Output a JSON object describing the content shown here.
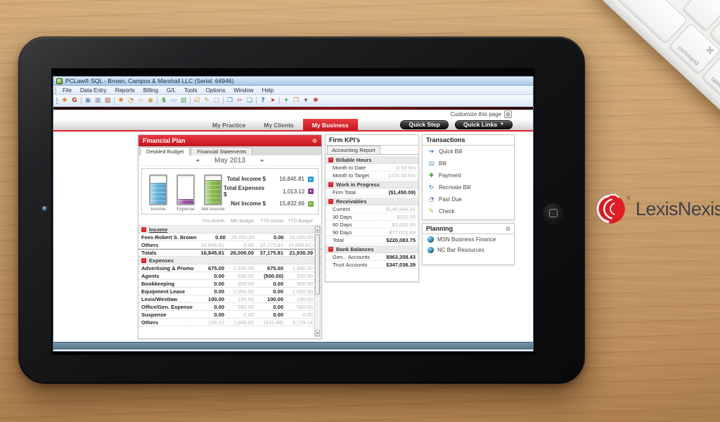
{
  "brand": {
    "logo_text": "LexisNexis",
    "registered_mark": "®"
  },
  "keyboard": {
    "command_glyph": "⌘",
    "command_label": "command",
    "option_glyph": "⌥",
    "option_label": "option",
    "arrows": [
      "◀",
      "▲",
      "▼",
      "▶"
    ]
  },
  "app": {
    "title": "PCLaw® SQL - Brown, Campos & Marshall LLC (Serial: 64946)",
    "menus": [
      "File",
      "Data Entry",
      "Reports",
      "Billing",
      "G/L",
      "Tools",
      "Options",
      "Window",
      "Help"
    ],
    "toolbar": [
      {
        "name": "practice-flower",
        "glyph": "✺",
        "color": "#e2862c"
      },
      {
        "name": "exit",
        "glyph": "G",
        "color": "#c03a2b"
      },
      {
        "name": "briefcase",
        "glyph": "▣",
        "color": "#6e8db3",
        "sep": true
      },
      {
        "name": "calendar",
        "glyph": "▦",
        "color": "#8a9ab0"
      },
      {
        "name": "note",
        "glyph": "▧",
        "color": "#b0513f"
      },
      {
        "name": "appointment",
        "glyph": "✺",
        "color": "#d8882f",
        "sep": true
      },
      {
        "name": "clock",
        "glyph": "◔",
        "color": "#cf8b30"
      },
      {
        "name": "new-page",
        "glyph": "▱",
        "color": "#c2a95e"
      },
      {
        "name": "lock",
        "glyph": "◉",
        "color": "#c9a23c"
      },
      {
        "name": "money",
        "glyph": "$",
        "color": "#3d9e3d",
        "sep": true
      },
      {
        "name": "monitor",
        "glyph": "▭",
        "color": "#5f9ecf"
      },
      {
        "name": "picture",
        "glyph": "▨",
        "color": "#63a14e"
      },
      {
        "name": "orange-task",
        "glyph": "☑",
        "color": "#e0882e",
        "sep": true
      },
      {
        "name": "edit-page",
        "glyph": "✎",
        "color": "#b8a34a"
      },
      {
        "name": "page",
        "glyph": "▢",
        "color": "#a89a6a"
      },
      {
        "name": "copy",
        "glyph": "❐",
        "color": "#5f86b5",
        "sep": true
      },
      {
        "name": "cut",
        "glyph": "✂",
        "color": "#c04545"
      },
      {
        "name": "paste",
        "glyph": "❏",
        "color": "#5f86b5"
      },
      {
        "name": "help",
        "glyph": "?",
        "color": "#2f6fbf",
        "sep": true
      },
      {
        "name": "pointer",
        "glyph": "➤",
        "color": "#c03a3a"
      },
      {
        "name": "add",
        "glyph": "✦",
        "color": "#3fae68",
        "sep": true
      },
      {
        "name": "windows",
        "glyph": "❐",
        "color": "#d8952f"
      },
      {
        "name": "dropdown",
        "glyph": "▾",
        "color": "#555555"
      },
      {
        "name": "settings",
        "glyph": "✱",
        "color": "#bf4040"
      }
    ],
    "customize_label": "Customize this page",
    "gear_glyph": "⚙",
    "caret_glyph": "▼",
    "nav_tabs": [
      {
        "label": "My Practice",
        "active": false
      },
      {
        "label": "My Clients",
        "active": false
      },
      {
        "label": "My Business",
        "active": true
      }
    ],
    "quick_step": "Quick Step",
    "quick_links": "Quick Links",
    "scroll_up_glyph": "▲",
    "scroll_down_glyph": "▼",
    "accent_red": "#da2128"
  },
  "financial_plan": {
    "title": "Financial Plan",
    "tabs": [
      {
        "label": "Detailed Budget",
        "active": true
      },
      {
        "label": "Financial Statements",
        "active": false
      }
    ],
    "prev_glyph": "◄",
    "next_glyph": "►",
    "month": "May 2013",
    "badge_glyph": "▸",
    "totals": [
      {
        "label": "Total Income $",
        "value": "16,845.81",
        "color": "#2e9bd6"
      },
      {
        "label": "Total Expenses $",
        "value": "1,013.12",
        "color": "#8e3f93"
      },
      {
        "label": "Net Income $",
        "value": "15,832.69",
        "color": "#7db343"
      }
    ],
    "chart_data": {
      "type": "bar",
      "categories": [
        "Income",
        "Expense",
        "Net Income"
      ],
      "values": [
        16845.81,
        1013.12,
        15832.69
      ],
      "colors": [
        "#64b1dd",
        "#9b59a4",
        "#8abc50"
      ],
      "fill_fractions": [
        0.76,
        0.17,
        0.86
      ],
      "xlabel": "",
      "ylabel": "",
      "legend": false,
      "grid": false
    },
    "table": {
      "columns": [
        "This Month",
        "Mth Budget",
        "YTD Actual",
        "YTD Budget"
      ],
      "sections": [
        {
          "name": "Income",
          "underline": true,
          "rows": [
            {
              "label": "Fees-Robert S. Brown",
              "values": [
                "0.00",
                "26,000.00",
                "0.00",
                "26,000.00"
              ],
              "dark": [
                true,
                false,
                true,
                false
              ]
            },
            {
              "label": "Others",
              "values": [
                "16,845.81",
                "0.00",
                "37,175.81",
                "(4,069.61)"
              ],
              "dark": [
                false,
                false,
                false,
                false
              ]
            },
            {
              "label": "Totals",
              "values": [
                "16,845.81",
                "26,000.00",
                "37,175.81",
                "21,930.39"
              ],
              "total": true
            }
          ]
        },
        {
          "name": "Expenses",
          "underline": false,
          "rows": [
            {
              "label": "Advertising & Promo",
              "values": [
                "675.00",
                "1,500.00",
                "675.00",
                "1,450.00"
              ],
              "dark": [
                true,
                false,
                true,
                false
              ]
            },
            {
              "label": "Agents",
              "values": [
                "0.00",
                "500.00",
                "(500.00)",
                "500.00"
              ],
              "dark": [
                true,
                false,
                true,
                false
              ]
            },
            {
              "label": "Bookkeeping",
              "values": [
                "0.00",
                "300.00",
                "0.00",
                "300.00"
              ],
              "dark": [
                true,
                false,
                true,
                false
              ]
            },
            {
              "label": "Equipment Lease",
              "values": [
                "0.00",
                "1,000.00",
                "0.00",
                "1,000.00"
              ],
              "dark": [
                true,
                false,
                true,
                false
              ]
            },
            {
              "label": "Lexis/Westlaw",
              "values": [
                "100.00",
                "150.00",
                "100.00",
                "150.00"
              ],
              "dark": [
                true,
                false,
                true,
                false
              ]
            },
            {
              "label": "Office/Gen. Expense",
              "values": [
                "0.00",
                "560.00",
                "0.00",
                "560.00"
              ],
              "dark": [
                true,
                false,
                true,
                false
              ]
            },
            {
              "label": "Suspense",
              "values": [
                "0.00",
                "0.00",
                "0.00",
                "0.00"
              ],
              "dark": [
                true,
                false,
                true,
                false
              ]
            },
            {
              "label": "Others",
              "values": [
                "238.12",
                "1,600.00",
                "(431.88)",
                "3,719.14"
              ],
              "dark": [
                false,
                false,
                false,
                false
              ]
            }
          ]
        }
      ]
    }
  },
  "firm_kpis": {
    "title": "Firm KPI's",
    "tab": "Accounting Report",
    "sections": [
      {
        "name": "Billable Hours",
        "rows": [
          {
            "label": "Month to Date",
            "value": "0.50 hrs"
          },
          {
            "label": "Month to Target",
            "value": "1725.00 hrs"
          }
        ]
      },
      {
        "name": "Work in Progress",
        "rows": [
          {
            "label": "Firm Total",
            "value": "($1,450.09)",
            "bold": true
          }
        ]
      },
      {
        "name": "Receivables",
        "rows": [
          {
            "label": "Current",
            "value": "$140,946.91"
          },
          {
            "label": "30 Days",
            "value": "$110.00"
          },
          {
            "label": "60 Days",
            "value": "$2,000.00"
          },
          {
            "label": "90 Days",
            "value": "$77,026.84"
          },
          {
            "label": "Total",
            "value": "$220,083.75",
            "bold": true
          }
        ]
      },
      {
        "name": "Bank Balances",
        "rows": [
          {
            "label": "Gen... Accounts",
            "value": "$963,358.43",
            "bold": true
          },
          {
            "label": "Trust Accounts",
            "value": "$347,036.39",
            "bold": true
          }
        ]
      }
    ]
  },
  "transactions": {
    "title": "Transactions",
    "items": [
      {
        "label": "Quick Bill",
        "glyph": "➔",
        "color": "#2f7fd4"
      },
      {
        "label": "Bill",
        "glyph": "▤",
        "color": "#7ba3cf"
      },
      {
        "label": "Payment",
        "glyph": "✚",
        "color": "#3fa23f"
      },
      {
        "label": "Recreate Bill",
        "glyph": "↻",
        "color": "#2f7fd4"
      },
      {
        "label": "Past Due",
        "glyph": "◔",
        "color": "#4a7fc1"
      },
      {
        "label": "Check",
        "glyph": "✎",
        "color": "#c9a227"
      }
    ]
  },
  "planning": {
    "title": "Planning",
    "items": [
      {
        "label": "MSN Business Finance"
      },
      {
        "label": "NC Bar Resources"
      }
    ]
  }
}
